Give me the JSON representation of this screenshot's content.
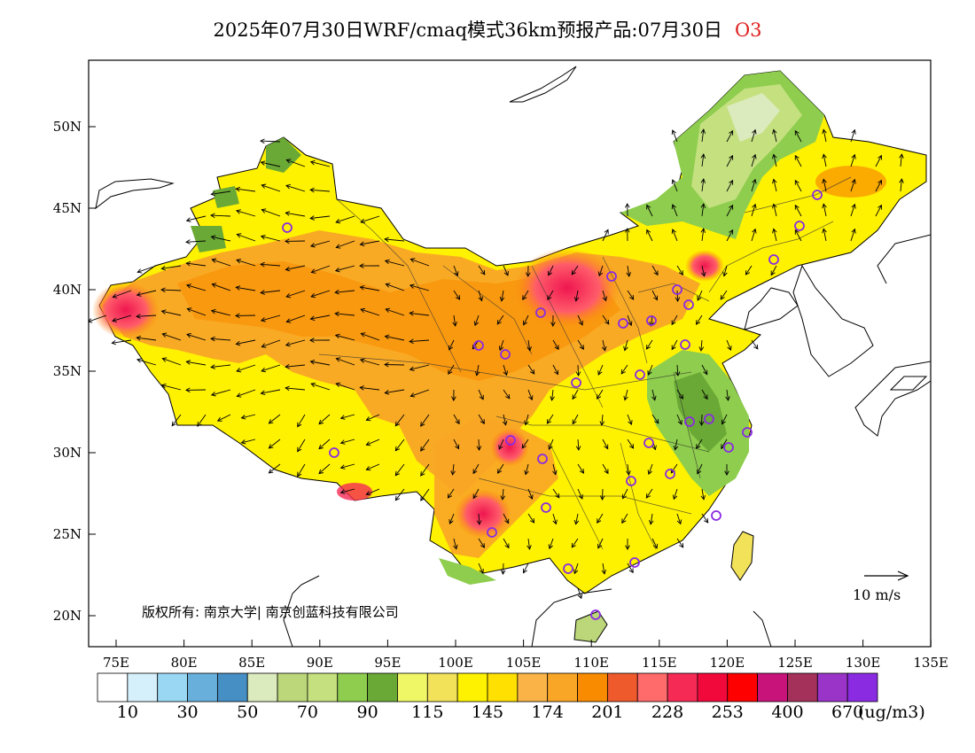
{
  "title": {
    "text": "2025年07月30日WRF/cmaq模式36km预报产品:07月30日",
    "species": "O3"
  },
  "axes": {
    "lat_labels": [
      "50N",
      "45N",
      "40N",
      "35N",
      "30N",
      "25N",
      "20N"
    ],
    "lon_labels": [
      "75E",
      "80E",
      "85E",
      "90E",
      "95E",
      "100E",
      "105E",
      "110E",
      "115E",
      "120E",
      "125E",
      "130E",
      "135E"
    ]
  },
  "copyright": "版权所有: 南京大学| 南京创蓝科技有限公司",
  "wind_scale": "10 m/s",
  "legend": {
    "colors": [
      "#ffffff",
      "#d6f0fb",
      "#9ad7f3",
      "#68afdc",
      "#458fc4",
      "#dcebbd",
      "#bcd779",
      "#c4e07f",
      "#8ecd4d",
      "#6aa935",
      "#f0f766",
      "#f2e25a",
      "#fff200",
      "#ffe000",
      "#f9b347",
      "#f9a526",
      "#f98b00",
      "#ef5a2c",
      "#ff6a6a",
      "#f52b55",
      "#f2093c",
      "#ff0000",
      "#c7137a",
      "#a4315a",
      "#9a34c8",
      "#8a2be2"
    ],
    "labels": [
      "10",
      "30",
      "50",
      "70",
      "90",
      "115",
      "145",
      "174",
      "201",
      "228",
      "253",
      "400",
      "670"
    ],
    "unit": "(ug/m3)"
  }
}
